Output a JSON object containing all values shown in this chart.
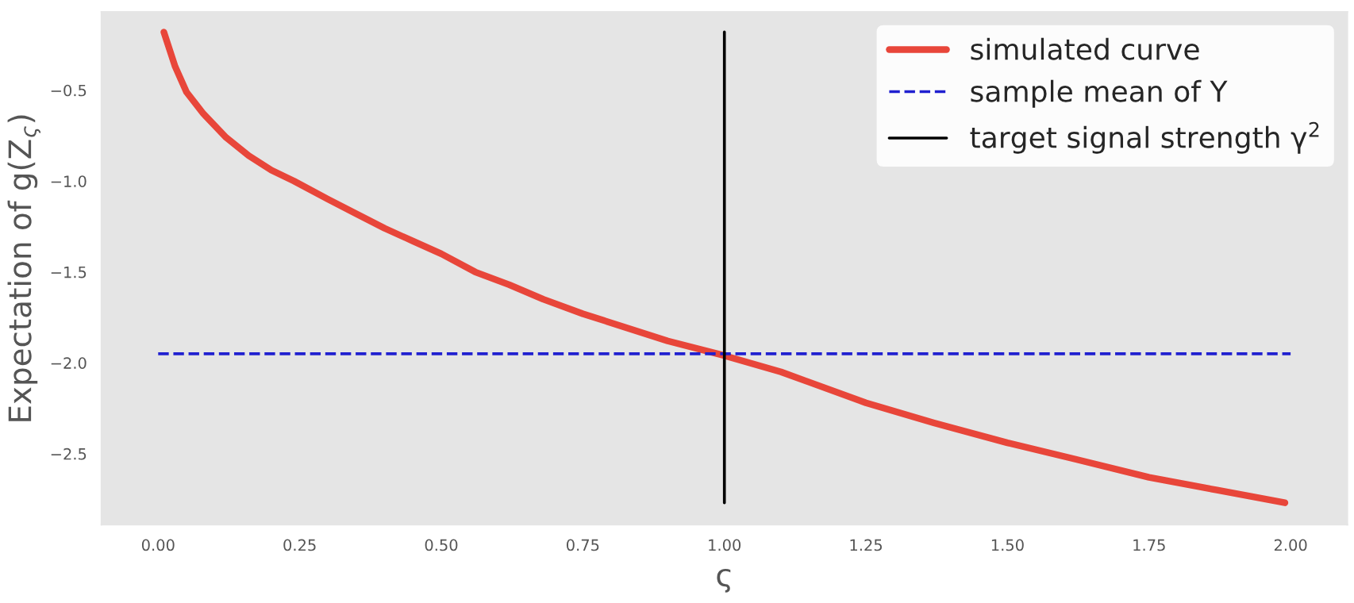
{
  "chart_data": {
    "type": "line",
    "xlabel": "ς",
    "ylabel": "Expectation of g(Z$_{ς}$)",
    "xlim": [
      -0.1,
      2.1
    ],
    "ylim": [
      -2.89,
      -0.07
    ],
    "xticks": [
      {
        "value": 0,
        "label": "0.00"
      },
      {
        "value": 0.25,
        "label": "0.25"
      },
      {
        "value": 0.5,
        "label": "0.50"
      },
      {
        "value": 0.75,
        "label": "0.75"
      },
      {
        "value": 1,
        "label": "1.00"
      },
      {
        "value": 1.25,
        "label": "1.25"
      },
      {
        "value": 1.5,
        "label": "1.50"
      },
      {
        "value": 1.75,
        "label": "1.75"
      },
      {
        "value": 2,
        "label": "2.00"
      }
    ],
    "yticks": [
      {
        "value": -2.5,
        "label": "−2.5"
      },
      {
        "value": -2.0,
        "label": "−2.0"
      },
      {
        "value": -1.5,
        "label": "−1.5"
      },
      {
        "value": -1.0,
        "label": "−1.0"
      },
      {
        "value": -0.5,
        "label": "−0.5"
      }
    ],
    "grid": false,
    "legend": "top right",
    "series": [
      {
        "name": "simulated curve",
        "color": "#e8463a",
        "line_style": "solid",
        "x": [
          0.01,
          0.03,
          0.05,
          0.08,
          0.12,
          0.16,
          0.2,
          0.24,
          0.3,
          0.35,
          0.4,
          0.45,
          0.5,
          0.56,
          0.62,
          0.68,
          0.75,
          0.82,
          0.9,
          1.0,
          1.1,
          1.25,
          1.37,
          1.5,
          1.62,
          1.75,
          1.87,
          1.99
        ],
        "values": [
          -0.18,
          -0.37,
          -0.51,
          -0.63,
          -0.76,
          -0.86,
          -0.94,
          -1.0,
          -1.1,
          -1.18,
          -1.26,
          -1.33,
          -1.4,
          -1.5,
          -1.57,
          -1.65,
          -1.73,
          -1.8,
          -1.88,
          -1.96,
          -2.05,
          -2.22,
          -2.33,
          -2.44,
          -2.53,
          -2.63,
          -2.7,
          -2.77
        ]
      },
      {
        "name": "sample mean of Y",
        "color": "#2020d0",
        "line_style": "dashed",
        "x": [
          0.0,
          2.0
        ],
        "values": [
          -1.95,
          -1.95
        ]
      },
      {
        "name": "target signal strength γ$^{2}$",
        "color": "#000000",
        "line_style": "solid",
        "x": [
          1.0,
          1.0
        ],
        "values": [
          -0.18,
          -2.77
        ]
      }
    ]
  }
}
